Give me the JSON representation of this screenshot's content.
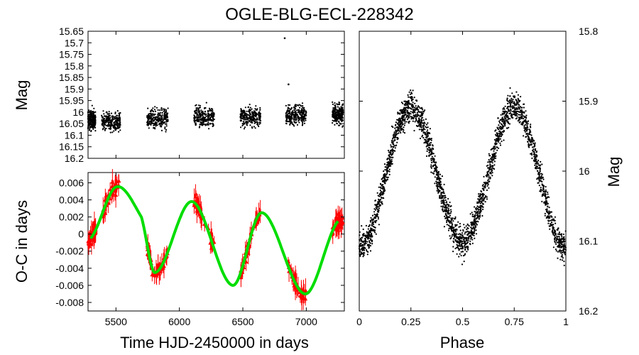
{
  "title": "OGLE-BLG-ECL-228342",
  "colors": {
    "points": "#000000",
    "oc_points": "#ff0000",
    "fit": "#00dd00",
    "frame": "#000000"
  },
  "chart_data": [
    {
      "type": "scatter",
      "name": "light-curve",
      "ylabel": "Mag",
      "xlim": [
        5280,
        7300
      ],
      "ylim": [
        16.2,
        15.65
      ],
      "yticks": [
        "15.65",
        "15.7",
        "15.75",
        "15.8",
        "15.85",
        "15.9",
        "15.95",
        "16",
        "16.05",
        "16.1",
        "16.15",
        "16.2"
      ],
      "seasons": [
        {
          "start": 5280,
          "end": 5340,
          "mean": 16.035
        },
        {
          "start": 5385,
          "end": 5535,
          "mean": 16.04
        },
        {
          "start": 5745,
          "end": 5910,
          "mean": 16.03
        },
        {
          "start": 6115,
          "end": 6275,
          "mean": 16.025
        },
        {
          "start": 6480,
          "end": 6640,
          "mean": 16.02
        },
        {
          "start": 6840,
          "end": 7000,
          "mean": 16.015
        },
        {
          "start": 7205,
          "end": 7290,
          "mean": 16.01
        }
      ],
      "outliers": [
        {
          "x": 6830,
          "y": 15.68
        },
        {
          "x": 6860,
          "y": 15.88
        }
      ]
    },
    {
      "type": "scatter",
      "name": "o-c-diagram",
      "xlabel": "Time HJD-2450000 in days",
      "ylabel": "O-C in days",
      "xlim": [
        5280,
        7300
      ],
      "ylim": [
        -0.009,
        0.0072
      ],
      "xticks": [
        "5500",
        "6000",
        "6500",
        "7000"
      ],
      "yticks": [
        "0.006",
        "0.004",
        "0.002",
        "0",
        "-0.002",
        "-0.004",
        "-0.006",
        "-0.008"
      ],
      "fit": {
        "type": "sine",
        "center_x": 6300,
        "width_x": 1400,
        "points": [
          [
            5300,
            -0.0005
          ],
          [
            5500,
            0.0055
          ],
          [
            5700,
            0.002
          ],
          [
            5810,
            -0.0045
          ],
          [
            6100,
            0.0038
          ],
          [
            6420,
            -0.006
          ],
          [
            6650,
            0.0025
          ],
          [
            6990,
            -0.007
          ],
          [
            7250,
            0.0015
          ]
        ]
      }
    },
    {
      "type": "scatter",
      "name": "phased-light-curve",
      "xlabel": "Phase",
      "ylabel": "Mag",
      "xlim": [
        0,
        1
      ],
      "ylim": [
        16.2,
        15.8
      ],
      "xticks": [
        "0",
        "0.25",
        "0.5",
        "0.75",
        "1"
      ],
      "yticks": [
        "15.8",
        "15.9",
        "16",
        "16.1",
        "16.2"
      ],
      "model": {
        "max_mag": 15.91,
        "min1_mag": 16.11,
        "min2_mag": 16.1
      }
    }
  ]
}
